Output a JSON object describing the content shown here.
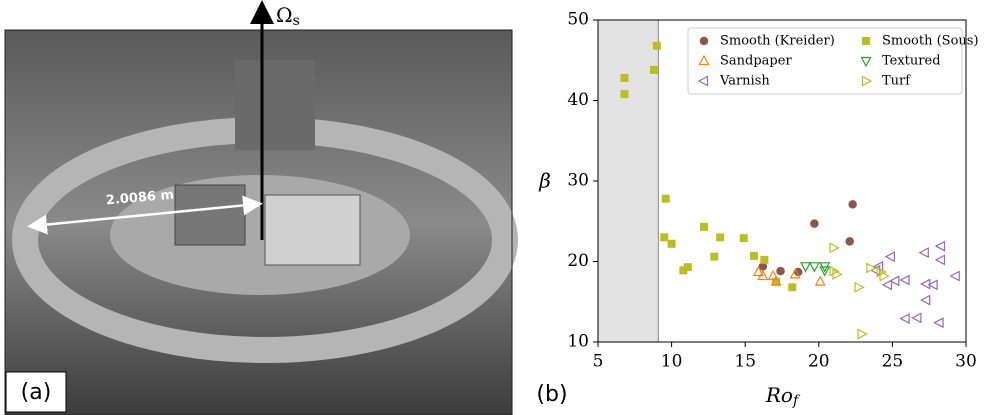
{
  "panel_a": {
    "label": "(a)",
    "axis_label": "Ω_s",
    "distance_label": "2.0086 m"
  },
  "panel_b": {
    "label": "(b)"
  },
  "chart_data": {
    "type": "scatter",
    "x_label": "Ro_f",
    "y_label": "β",
    "xlim": [
      5,
      30
    ],
    "xticks": [
      5,
      10,
      15,
      20,
      25,
      30
    ],
    "ylim": [
      10,
      50
    ],
    "yticks": [
      10,
      20,
      30,
      40,
      50
    ],
    "shaded_xspan": [
      5,
      9.1
    ],
    "shaded_color": "#e3e3e3",
    "legend": "upper right",
    "series": [
      {
        "name": "Smooth (Kreider)",
        "color": "#8c564b",
        "marker": "circle",
        "filled": true,
        "x": [
          16.2,
          17.4,
          18.6,
          19.7,
          22.1,
          22.3
        ],
        "values": [
          19.4,
          18.8,
          18.7,
          24.7,
          22.5,
          27.1
        ]
      },
      {
        "name": "Smooth (Sous)",
        "color": "#bcbd22",
        "marker": "square",
        "filled": true,
        "x": [
          6.8,
          6.8,
          8.8,
          9.0,
          9.6,
          9.5,
          10.0,
          10.8,
          11.1,
          12.2,
          12.9,
          13.3,
          14.9,
          15.6,
          16.3,
          18.2,
          17.1
        ],
        "values": [
          42.8,
          40.8,
          43.8,
          46.8,
          27.8,
          23.0,
          22.2,
          18.9,
          19.3,
          24.3,
          20.6,
          23.0,
          22.9,
          20.7,
          20.2,
          16.8,
          17.5
        ]
      },
      {
        "name": "Sandpaper",
        "color": "#ff7f0e",
        "marker": "triangle-up",
        "filled": false,
        "x": [
          15.9,
          16.2,
          16.9,
          17.1,
          18.4,
          20.1
        ],
        "values": [
          18.7,
          18.2,
          18.2,
          17.5,
          18.4,
          17.5
        ]
      },
      {
        "name": "Textured",
        "color": "#2ca02c",
        "marker": "triangle-down",
        "filled": false,
        "x": [
          19.1,
          19.7,
          20.4,
          20.4
        ],
        "values": [
          19.4,
          19.4,
          19.4,
          18.9
        ]
      },
      {
        "name": "Varnish",
        "color": "#9467bd",
        "marker": "triangle-left",
        "filled": false,
        "x": [
          23.9,
          24.1,
          24.7,
          24.9,
          25.2,
          25.9,
          25.9,
          26.7,
          27.2,
          27.3,
          27.3,
          27.8,
          28.3,
          28.3,
          28.2,
          29.3
        ],
        "values": [
          18.9,
          19.4,
          17.1,
          20.6,
          17.6,
          17.7,
          12.9,
          13.0,
          21.1,
          15.2,
          17.2,
          17.1,
          21.9,
          20.2,
          12.4,
          18.2
        ]
      },
      {
        "name": "Turf",
        "color": "#bcbd22",
        "marker": "triangle-right",
        "filled": false,
        "x": [
          21.0,
          21.0,
          21.2,
          22.7,
          22.9,
          23.5,
          24.2,
          24.4
        ],
        "values": [
          21.7,
          18.8,
          18.4,
          16.8,
          11.0,
          19.2,
          18.7,
          18.2
        ]
      }
    ]
  }
}
